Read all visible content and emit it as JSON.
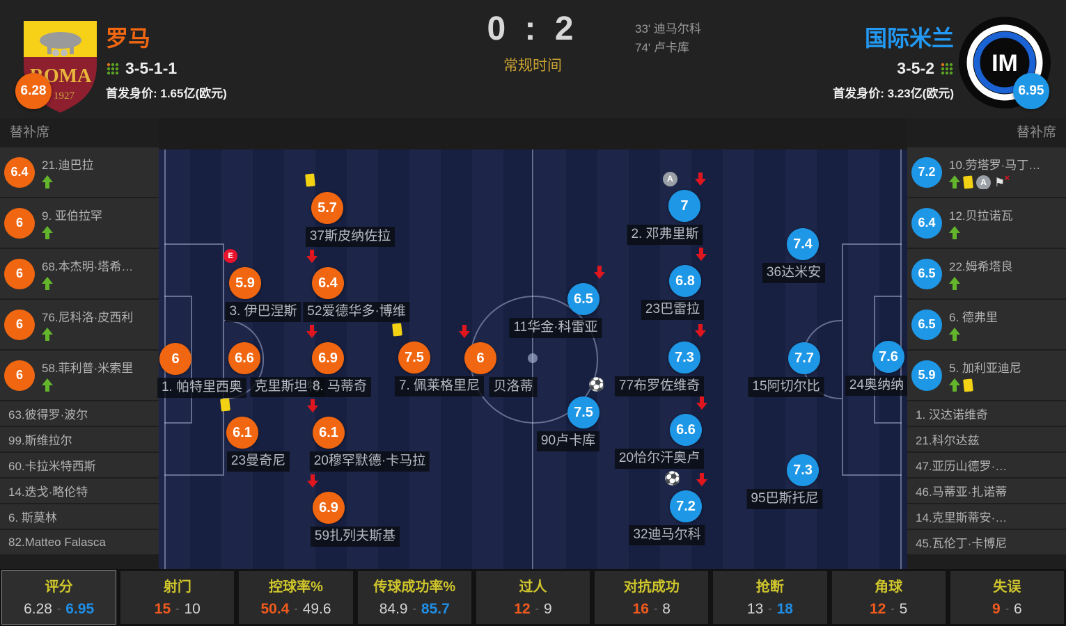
{
  "ui": {
    "dash": "-"
  },
  "colors": {
    "home_accent": "#f06611",
    "away_accent": "#1e97e6",
    "status_gold": "#c8a232",
    "stat_label_yellow": "#d0c62c",
    "stat_home_orange": "#f05a1e",
    "stat_away_blue": "#1f8fe8",
    "up_green": "#63b52c",
    "down_red": "#e0161f",
    "yellow_card": "#f2d213"
  },
  "header": {
    "score": "0 : 2",
    "status": "常规时间",
    "goals": [
      "33' 迪马尔科",
      "74' 卢卡库"
    ],
    "home": {
      "name": "罗马",
      "formation": "3-5-1-1",
      "value": "首发身价: 1.65亿(欧元)",
      "rating": "6.28",
      "crest_text": "ROMA",
      "crest_year": "1927"
    },
    "away": {
      "name": "国际米兰",
      "formation": "3-5-2",
      "value": "首发身价: 3.23亿(欧元)",
      "rating": "6.95",
      "crest_text": "IM"
    }
  },
  "bench": {
    "title_left": "替补席",
    "title_right": "替补席",
    "home": [
      {
        "rating": "6.4",
        "name": "21.迪巴拉",
        "icons": [
          "up"
        ]
      },
      {
        "rating": "6",
        "name": "9. 亚伯拉罕",
        "icons": [
          "up"
        ]
      },
      {
        "rating": "6",
        "name": "68.本杰明·塔希…",
        "icons": [
          "up"
        ]
      },
      {
        "rating": "6",
        "name": "76.尼科洛·皮西利",
        "icons": [
          "up"
        ]
      },
      {
        "rating": "6",
        "name": "58.菲利普·米索里",
        "icons": [
          "up"
        ]
      },
      {
        "name": "63.彼得罗·波尔"
      },
      {
        "name": "99.斯维拉尔"
      },
      {
        "name": "60.卡拉米特西斯"
      },
      {
        "name": "14.迭戈·略伦特"
      },
      {
        "name": "6. 斯莫林"
      },
      {
        "name": "82.Matteo Falasca"
      }
    ],
    "away": [
      {
        "rating": "7.2",
        "name": "10.劳塔罗·马丁…",
        "icons": [
          "up",
          "yellow",
          "assist",
          "flagx"
        ]
      },
      {
        "rating": "6.4",
        "name": "12.贝拉诺瓦",
        "icons": [
          "up"
        ]
      },
      {
        "rating": "6.5",
        "name": "22.姆希塔良",
        "icons": [
          "up"
        ]
      },
      {
        "rating": "6.5",
        "name": "6. 德弗里",
        "icons": [
          "up"
        ]
      },
      {
        "rating": "5.9",
        "name": "5. 加利亚迪尼",
        "icons": [
          "up",
          "yellow"
        ]
      },
      {
        "name": "1. 汉达诺维奇"
      },
      {
        "name": "21.科尔达兹"
      },
      {
        "name": "47.亚历山德罗·…"
      },
      {
        "name": "46.马蒂亚·扎诺蒂"
      },
      {
        "name": "14.克里斯蒂安·…"
      },
      {
        "name": "45.瓦伦丁·卡博尼"
      }
    ]
  },
  "pitch": {
    "home": [
      {
        "name": "1. 帕特里西奥",
        "rating": "6",
        "icons": []
      },
      {
        "name": "克里斯坦特",
        "rating": "6.6",
        "icons": []
      },
      {
        "name": "8. 马蒂奇",
        "rating": "6.9",
        "icons": [
          "down@tl"
        ]
      },
      {
        "name": "7. 佩莱格里尼",
        "rating": "7.5",
        "icons": [
          "yellow@tl"
        ]
      },
      {
        "name": "贝洛蒂",
        "rating": "6",
        "icons": [
          "down@tl"
        ]
      },
      {
        "name": "37斯皮纳佐拉",
        "rating": "5.7",
        "icons": [
          "yellow@tl"
        ]
      },
      {
        "name": "3. 伊巴涅斯",
        "rating": "5.9",
        "icons": [
          "error@tl"
        ]
      },
      {
        "name": "52爱德华多·博维",
        "rating": "6.4",
        "icons": [
          "down@tl"
        ]
      },
      {
        "name": "23曼奇尼",
        "rating": "6.1",
        "icons": [
          "yellow@tl"
        ]
      },
      {
        "name": "20穆罕默德·卡马拉",
        "rating": "6.1",
        "icons": [
          "down@tl"
        ]
      },
      {
        "name": "59扎列夫斯基",
        "rating": "6.9",
        "icons": [
          "down@tl"
        ]
      }
    ],
    "away": [
      {
        "name": "24奥纳纳",
        "rating": "7.6",
        "icons": []
      },
      {
        "name": "36达米安",
        "rating": "7.4",
        "icons": []
      },
      {
        "name": "15阿切尔比",
        "rating": "7.7",
        "icons": []
      },
      {
        "name": "95巴斯托尼",
        "rating": "7.3",
        "icons": []
      },
      {
        "name": "2. 邓弗里斯",
        "rating": "7",
        "icons": [
          "assist@tl",
          "down@tr"
        ]
      },
      {
        "name": "23巴雷拉",
        "rating": "6.8",
        "icons": [
          "down@tr"
        ]
      },
      {
        "name": "77布罗佐维奇",
        "rating": "7.3",
        "icons": [
          "down@tr"
        ]
      },
      {
        "name": "20恰尔汗奥卢",
        "rating": "6.6",
        "icons": [
          "down@tr"
        ]
      },
      {
        "name": "32迪马尔科",
        "rating": "7.2",
        "icons": [
          "goal@tl",
          "down@tr"
        ]
      },
      {
        "name": "11华金·科雷亚",
        "rating": "6.5",
        "icons": [
          "down@tr"
        ]
      },
      {
        "name": "90卢卡库",
        "rating": "7.5",
        "icons": [
          "goal@tr"
        ]
      }
    ]
  },
  "stats": [
    {
      "label": "评分",
      "home": "6.28",
      "away": "6.95"
    },
    {
      "label": "射门",
      "home": "15",
      "away": "10"
    },
    {
      "label": "控球率%",
      "home": "50.4",
      "away": "49.6"
    },
    {
      "label": "传球成功率%",
      "home": "84.9",
      "away": "85.7"
    },
    {
      "label": "过人",
      "home": "12",
      "away": "9"
    },
    {
      "label": "对抗成功",
      "home": "16",
      "away": "8"
    },
    {
      "label": "抢断",
      "home": "13",
      "away": "18"
    },
    {
      "label": "角球",
      "home": "12",
      "away": "5"
    },
    {
      "label": "失误",
      "home": "9",
      "away": "6"
    }
  ]
}
